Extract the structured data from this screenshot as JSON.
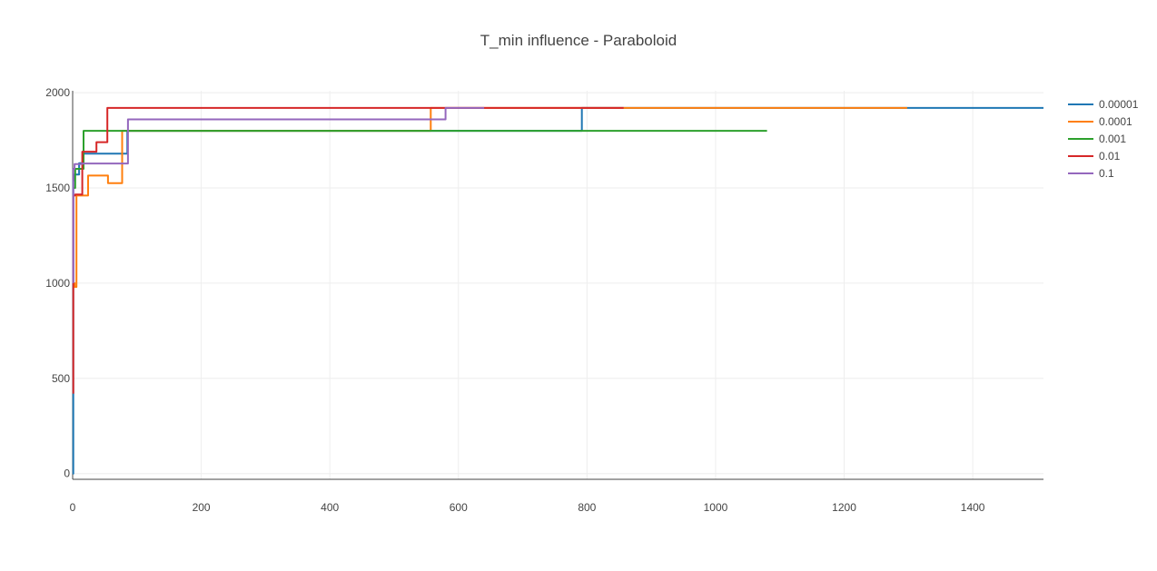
{
  "chart_data": {
    "type": "line",
    "title": "T_min influence - Paraboloid",
    "xlabel": "",
    "ylabel": "",
    "xlim": [
      0,
      1510
    ],
    "ylim": [
      -30,
      2010
    ],
    "xticks": [
      0,
      200,
      400,
      600,
      800,
      1000,
      1200,
      1400
    ],
    "yticks": [
      0,
      500,
      1000,
      1500,
      2000
    ],
    "xtick_labels": [
      "0",
      "200",
      "400",
      "600",
      "800",
      "1000",
      "1200",
      "1400"
    ],
    "ytick_labels": [
      "0",
      "500",
      "1000",
      "1500",
      "2000"
    ],
    "grid": true,
    "legend_position": "right",
    "series": [
      {
        "name": "0.00001",
        "color": "#1f77b4",
        "x": [
          0,
          1,
          1,
          3,
          3,
          10,
          10,
          17,
          17,
          85,
          85,
          792,
          792,
          1510
        ],
        "y": [
          0,
          0,
          1540,
          1540,
          1570,
          1570,
          1630,
          1630,
          1680,
          1680,
          1800,
          1800,
          1920,
          1920
        ]
      },
      {
        "name": "0.0001",
        "color": "#ff7f0e",
        "x": [
          1,
          3,
          3,
          6,
          6,
          18,
          18,
          24,
          24,
          55,
          55,
          77,
          77,
          557,
          557,
          1298
        ],
        "y": [
          1000,
          1000,
          980,
          980,
          1460,
          1460,
          1460,
          1460,
          1565,
          1565,
          1525,
          1525,
          1800,
          1800,
          1920,
          1920
        ]
      },
      {
        "name": "0.001",
        "color": "#2ca02c",
        "x": [
          1,
          4,
          4,
          17,
          17,
          1080
        ],
        "y": [
          1500,
          1500,
          1600,
          1600,
          1800,
          1800
        ]
      },
      {
        "name": "0.01",
        "color": "#d62728",
        "x": [
          1,
          1,
          4,
          4,
          15,
          15,
          37,
          37,
          54,
          54,
          857
        ],
        "y": [
          420,
          1460,
          1460,
          1465,
          1465,
          1690,
          1690,
          1740,
          1740,
          1920,
          1920
        ]
      },
      {
        "name": "0.1",
        "color": "#9467bd",
        "x": [
          1,
          1,
          3,
          3,
          14,
          14,
          86,
          86,
          580,
          580,
          640
        ],
        "y": [
          1000,
          1600,
          1600,
          1625,
          1625,
          1628,
          1628,
          1860,
          1860,
          1920,
          1920
        ]
      }
    ]
  }
}
